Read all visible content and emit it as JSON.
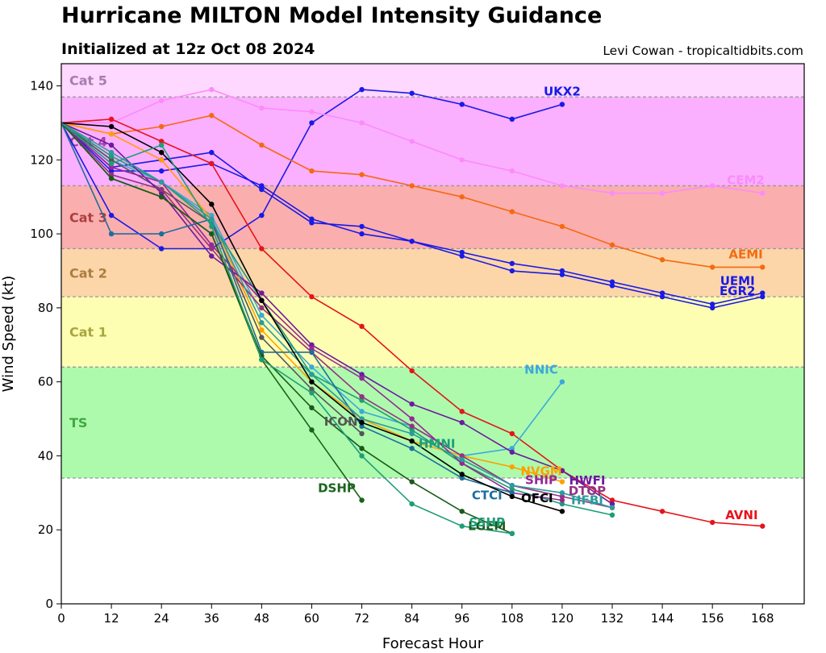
{
  "title": "Hurricane MILTON Model Intensity Guidance",
  "subtitle": "Initialized at 12z Oct 08 2024",
  "credit": "Levi Cowan - tropicaltidbits.com",
  "chart_data": {
    "type": "line",
    "title": "Hurricane MILTON Model Intensity Guidance",
    "xlabel": "Forecast Hour",
    "ylabel": "Wind Speed (kt)",
    "xlim": [
      0,
      178
    ],
    "ylim": [
      0,
      146
    ],
    "xticks": [
      0,
      12,
      24,
      36,
      48,
      60,
      72,
      84,
      96,
      108,
      120,
      132,
      144,
      156,
      168
    ],
    "yticks": [
      0,
      20,
      40,
      60,
      80,
      100,
      120,
      140
    ],
    "bands": [
      {
        "name": "TS",
        "from": 34,
        "to": 64,
        "fill": "#adfaad",
        "text": "#40a840"
      },
      {
        "name": "Cat 1",
        "from": 64,
        "to": 83,
        "fill": "#fefeb2",
        "text": "#a8a640"
      },
      {
        "name": "Cat 2",
        "from": 83,
        "to": 96,
        "fill": "#fcd6a9",
        "text": "#ac7d40"
      },
      {
        "name": "Cat 3",
        "from": 96,
        "to": 113,
        "fill": "#fbaeae",
        "text": "#ac4040"
      },
      {
        "name": "Cat 4",
        "from": 113,
        "to": 137,
        "fill": "#fbafff",
        "text": "#a040a8"
      },
      {
        "name": "Cat 5",
        "from": 137,
        "to": 146,
        "fill": "#fed8ff",
        "text": "#a87cb0"
      }
    ],
    "series": [
      {
        "name": "UKX2",
        "color": "#1a1ae6",
        "label": "UKX2",
        "labelAt": [
          120,
          138.5
        ],
        "x": [
          0,
          12,
          24,
          36,
          48,
          60,
          72,
          84,
          96,
          108,
          120
        ],
        "y": [
          130,
          105,
          96,
          96,
          105,
          130,
          139,
          138,
          135,
          131,
          135
        ]
      },
      {
        "name": "CEM2",
        "color": "#fa8cfa",
        "label": "CEM2",
        "labelAt": [
          164,
          114.5
        ],
        "x": [
          0,
          12,
          24,
          36,
          48,
          60,
          72,
          84,
          96,
          108,
          120,
          132,
          144,
          156,
          168
        ],
        "y": [
          130,
          130,
          136,
          139,
          134,
          133,
          130,
          125,
          120,
          117,
          113,
          111,
          111,
          113,
          111
        ]
      },
      {
        "name": "AEMI",
        "color": "#f46a12",
        "label": "AEMI",
        "labelAt": [
          164,
          94.5
        ],
        "x": [
          0,
          12,
          24,
          36,
          48,
          60,
          72,
          84,
          96,
          108,
          120,
          132,
          144,
          156,
          168
        ],
        "y": [
          130,
          127,
          129,
          132,
          124,
          117,
          116,
          113,
          110,
          106,
          102,
          97,
          93,
          91,
          91
        ]
      },
      {
        "name": "UEMI",
        "color": "#1a1ae6",
        "label": "UEMI",
        "labelAt": [
          162,
          87.3
        ],
        "x": [
          0,
          12,
          24,
          36,
          48,
          60,
          72,
          84,
          96,
          108,
          120,
          132,
          144,
          156,
          168
        ],
        "y": [
          130,
          118,
          120,
          122,
          112,
          103,
          102,
          98,
          95,
          92,
          90,
          87,
          84,
          81,
          84
        ]
      },
      {
        "name": "EGR2",
        "color": "#1a1ae6",
        "label": "EGR2",
        "labelAt": [
          162,
          84.5
        ],
        "x": [
          0,
          12,
          24,
          36,
          48,
          60,
          72,
          84,
          96,
          108,
          120,
          132,
          144,
          156,
          168
        ],
        "y": [
          130,
          117,
          117,
          119,
          113,
          104,
          100,
          98,
          94,
          90,
          89,
          86,
          83,
          80,
          83
        ]
      },
      {
        "name": "AVNI",
        "color": "#e6141a",
        "label": "AVNI",
        "labelAt": [
          163,
          24
        ],
        "x": [
          0,
          12,
          24,
          36,
          48,
          60,
          72,
          84,
          96,
          108,
          120,
          132,
          144,
          156,
          168
        ],
        "y": [
          130,
          131,
          125,
          119,
          96,
          83,
          75,
          63,
          52,
          46,
          36,
          28,
          25,
          22,
          21
        ]
      },
      {
        "name": "NNIC",
        "color": "#3ca8dc",
        "label": "NNIC",
        "labelAt": [
          115,
          63.3
        ],
        "x": [
          0,
          12,
          24,
          36,
          48,
          60,
          72,
          84,
          96,
          108,
          120
        ],
        "y": [
          130,
          120,
          114,
          105,
          78,
          64,
          52,
          48,
          40,
          42,
          60
        ]
      },
      {
        "name": "ICON",
        "color": "#555555",
        "label": "ICON",
        "labelAt": [
          67,
          49.3
        ],
        "x": [
          0,
          12,
          24,
          36,
          48,
          60,
          72
        ],
        "y": [
          130,
          120,
          112,
          103,
          72,
          58,
          46
        ]
      },
      {
        "name": "HMNI",
        "color": "#1e9e78",
        "label": "HMNI",
        "labelAt": [
          90,
          43.3
        ],
        "x": [
          0,
          12,
          24,
          36,
          48,
          60,
          72,
          84,
          96,
          108,
          120,
          132
        ],
        "y": [
          130,
          121,
          114,
          103,
          82,
          62,
          55,
          47,
          38,
          31,
          27,
          24
        ]
      },
      {
        "name": "DSHP",
        "color": "#1a641a",
        "label": "DSHP",
        "labelAt": [
          66,
          31.3
        ],
        "x": [
          0,
          12,
          24,
          36,
          48,
          60,
          72
        ],
        "y": [
          130,
          115,
          110,
          100,
          66,
          47,
          28
        ]
      },
      {
        "name": "NVGM",
        "color": "#ffa000",
        "label": "NVGM",
        "labelAt": [
          115,
          35.8
        ],
        "x": [
          0,
          12,
          24,
          36,
          48,
          60,
          72,
          84,
          96,
          108,
          120
        ],
        "y": [
          130,
          127,
          120,
          104,
          74,
          60,
          50,
          44,
          40,
          37,
          33
        ]
      },
      {
        "name": "HWFI",
        "color": "#6c1aa0",
        "label": "HWFI",
        "labelAt": [
          126,
          33.3
        ],
        "x": [
          0,
          12,
          24,
          36,
          48,
          60,
          72,
          84,
          96,
          108,
          120,
          132
        ],
        "y": [
          130,
          124,
          111,
          94,
          84,
          70,
          62,
          54,
          49,
          41,
          36,
          27
        ]
      },
      {
        "name": "SHIP",
        "color": "#962896",
        "label": "SHIP",
        "labelAt": [
          115,
          33.5
        ],
        "x": [
          0,
          12,
          24,
          36,
          48,
          60,
          72,
          84,
          96,
          108,
          120
        ],
        "y": [
          130,
          118,
          114,
          97,
          82,
          69,
          61,
          50,
          38,
          30,
          28
        ]
      },
      {
        "name": "DTOP",
        "color": "#963282",
        "label": "DTOP",
        "labelAt": [
          126,
          30.5
        ],
        "x": [
          0,
          12,
          24,
          36,
          48,
          60,
          72,
          84,
          96,
          108,
          120,
          132
        ],
        "y": [
          130,
          116,
          112,
          96,
          80,
          68,
          56,
          48,
          40,
          32,
          29,
          26
        ]
      },
      {
        "name": "CTCI",
        "color": "#1e6e9b",
        "label": "CTCI",
        "labelAt": [
          102,
          29.3
        ],
        "x": [
          0,
          12,
          24,
          36,
          48,
          60,
          72,
          84,
          96,
          108
        ],
        "y": [
          130,
          100,
          100,
          104,
          68,
          68,
          48,
          42,
          34,
          30
        ]
      },
      {
        "name": "HFBI",
        "color": "#2d9b9b",
        "label": "HFBI",
        "labelAt": [
          126,
          28
        ],
        "x": [
          0,
          12,
          24,
          36,
          48,
          60,
          72,
          84,
          96,
          108,
          120,
          132
        ],
        "y": [
          130,
          122,
          114,
          104,
          76,
          62,
          50,
          46,
          39,
          32,
          30,
          26
        ]
      },
      {
        "name": "OFCI",
        "color": "#000000",
        "label": "OFCI",
        "labelAt": [
          114,
          28.5
        ],
        "x": [
          0,
          12,
          24,
          36,
          48,
          60,
          72,
          84,
          96,
          108,
          120
        ],
        "y": [
          130,
          129,
          122,
          108,
          82,
          60,
          49,
          44,
          35,
          29,
          25
        ]
      },
      {
        "name": "LGEM",
        "color": "#1a5a1a",
        "label": "LGEM",
        "labelAt": [
          102,
          21
        ],
        "x": [
          0,
          12,
          24,
          36,
          48,
          60,
          72,
          84,
          96,
          108
        ],
        "y": [
          130,
          115,
          110,
          100,
          67,
          53,
          42,
          33,
          25,
          19
        ]
      },
      {
        "name": "SSHP",
        "color": "#1e9e78",
        "label": "SSHP",
        "labelAt": [
          102,
          22
        ],
        "x": [
          0,
          12,
          24,
          36,
          48,
          60,
          72,
          84,
          96,
          108
        ],
        "y": [
          130,
          119,
          124,
          102,
          66,
          57,
          40,
          27,
          21,
          19
        ]
      }
    ]
  }
}
